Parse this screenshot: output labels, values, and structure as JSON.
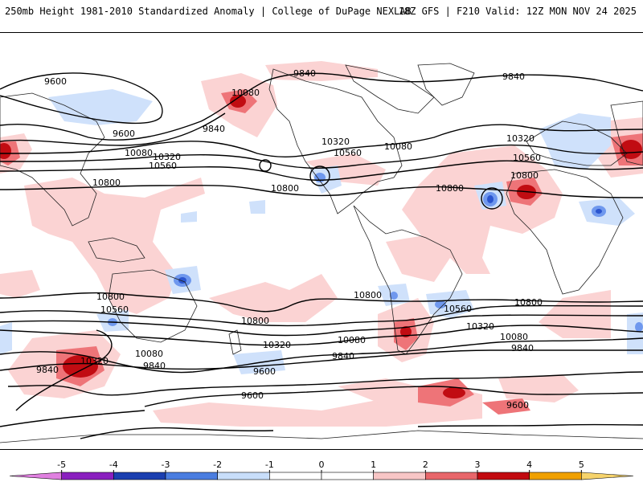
{
  "header": {
    "left": "250mb Height 1981-2010 Standardized Anomaly | College of DuPage NEXLAB",
    "right": "18Z GFS | F210 Valid: 12Z MON NOV 24 2025"
  },
  "contour_labels": [
    "9600",
    "10080",
    "9840",
    "9840",
    "9600",
    "9840",
    "10080",
    "10320",
    "10560",
    "10800",
    "10320",
    "10560",
    "10080",
    "10320",
    "10560",
    "10800",
    "10800",
    "10800",
    "10800",
    "10800",
    "10800",
    "10560",
    "10800",
    "10560",
    "10320",
    "10320",
    "10080",
    "10080",
    "9840",
    "9840",
    "10080",
    "9840",
    "9840",
    "9600",
    "9600",
    "9600"
  ],
  "colorbar": {
    "ticks": [
      "-5",
      "-4",
      "-3",
      "-2",
      "-1",
      "0",
      "1",
      "2",
      "3",
      "4",
      "5"
    ],
    "colors": [
      "#e080e0",
      "#8a1fbf",
      "#1b3fb0",
      "#4a7de0",
      "#c8defa",
      "#ffffff",
      "#ffffff",
      "#f8c6c6",
      "#e8666a",
      "#c20a10",
      "#f0a000",
      "#f6d36b"
    ]
  },
  "colors": {
    "neg_light": "#cfe1fb",
    "neg_mid": "#6f98ee",
    "neg_dark": "#2b55cf",
    "pos_light": "#fbd3d3",
    "pos_mid": "#ee7478",
    "pos_dark": "#c10c12"
  }
}
